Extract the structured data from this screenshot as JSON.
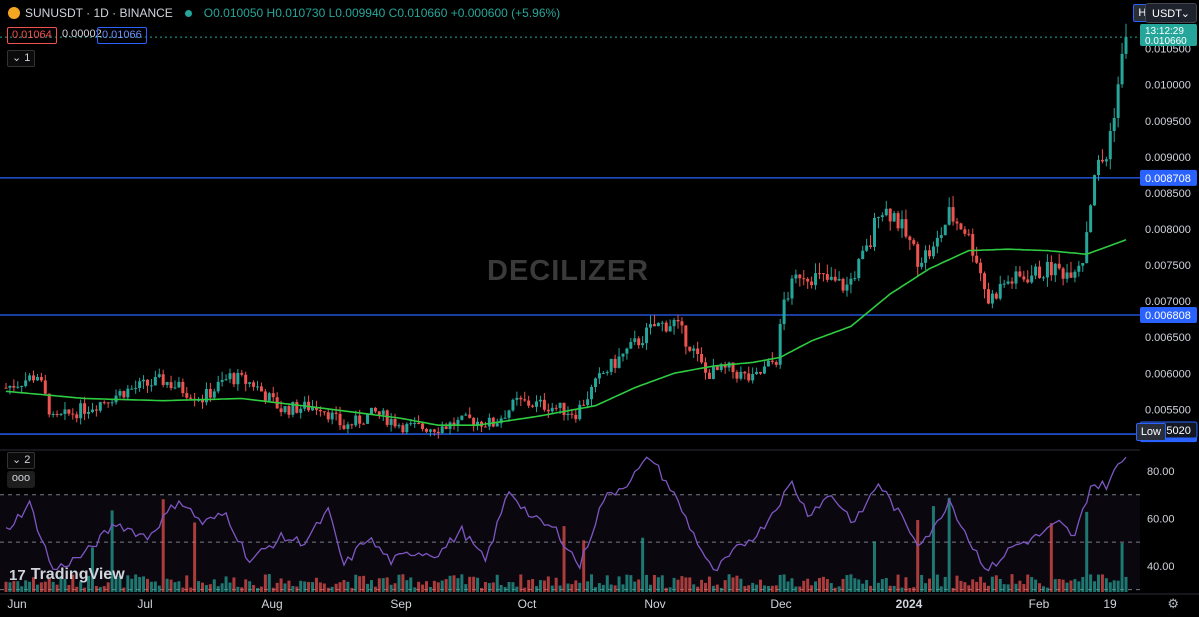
{
  "header": {
    "symbol": "SUNUSDT · 1D · BINANCE",
    "open": "O0.010050",
    "high": "H0.010730",
    "low": "L0.009940",
    "close": "C0.010660",
    "change": "+0.000600 (+5.96%)",
    "bid": "0.01064",
    "spread": "0.00002",
    "ask": "0.01066",
    "pane1_toggle": "1",
    "pane2_toggle": "2",
    "more": "ooo"
  },
  "watermark": "DECILIZER",
  "brand": "TradingView",
  "currency": "USDT",
  "colors": {
    "up": "#26a69a",
    "down": "#ef5350",
    "ma": "#2ecc40",
    "rsi": "#7e57c2",
    "hline": "#2962ff",
    "bg": "#000000"
  },
  "chart_data": [
    {
      "type": "candlestick",
      "title": "SUNUSDT · 1D · BINANCE",
      "x_ticks": [
        "Jun",
        "Jul",
        "Aug",
        "Sep",
        "Oct",
        "Nov",
        "Dec",
        "2024",
        "Feb",
        "19"
      ],
      "y_ticks": [
        0.0055,
        0.006,
        0.0065,
        0.007,
        0.0075,
        0.008,
        0.0085,
        0.009,
        0.0095,
        0.01,
        0.0105
      ],
      "y_tick_labels": [
        "0.005500",
        "0.006000",
        "0.006500",
        "0.007000",
        "0.007500",
        "0.008000",
        "0.008500",
        "0.009000",
        "0.009500",
        "0.010000",
        "0.010500"
      ],
      "ylim": [
        0.00495,
        0.0108
      ],
      "last_price": 0.01066,
      "last_price_label": "0.010660",
      "countdown": "13:12:29",
      "high_label": "High",
      "low_label": "Low",
      "low_value_label": "0.005020",
      "horizontal_lines": [
        {
          "value": 0.008708,
          "label": "0.008708"
        },
        {
          "value": 0.006808,
          "label": "0.006808"
        },
        {
          "value": 0.005157,
          "label": "0.005157"
        }
      ],
      "price_anchors": [
        {
          "d": 0,
          "p": 0.0058
        },
        {
          "d": 8,
          "p": 0.00598
        },
        {
          "d": 12,
          "p": 0.00535
        },
        {
          "d": 22,
          "p": 0.00555
        },
        {
          "d": 30,
          "p": 0.00575
        },
        {
          "d": 40,
          "p": 0.0059
        },
        {
          "d": 50,
          "p": 0.00565
        },
        {
          "d": 57,
          "p": 0.00595
        },
        {
          "d": 63,
          "p": 0.00585
        },
        {
          "d": 70,
          "p": 0.0055
        },
        {
          "d": 80,
          "p": 0.00555
        },
        {
          "d": 86,
          "p": 0.00525
        },
        {
          "d": 94,
          "p": 0.00545
        },
        {
          "d": 102,
          "p": 0.00525
        },
        {
          "d": 110,
          "p": 0.00525
        },
        {
          "d": 118,
          "p": 0.00535
        },
        {
          "d": 124,
          "p": 0.0053
        },
        {
          "d": 130,
          "p": 0.0056
        },
        {
          "d": 138,
          "p": 0.00555
        },
        {
          "d": 145,
          "p": 0.00545
        },
        {
          "d": 152,
          "p": 0.006
        },
        {
          "d": 160,
          "p": 0.0064
        },
        {
          "d": 165,
          "p": 0.00665
        },
        {
          "d": 170,
          "p": 0.0067
        },
        {
          "d": 174,
          "p": 0.0064
        },
        {
          "d": 178,
          "p": 0.006
        },
        {
          "d": 184,
          "p": 0.00605
        },
        {
          "d": 190,
          "p": 0.0059
        },
        {
          "d": 196,
          "p": 0.0062
        },
        {
          "d": 198,
          "p": 0.007
        },
        {
          "d": 202,
          "p": 0.0074
        },
        {
          "d": 208,
          "p": 0.0073
        },
        {
          "d": 214,
          "p": 0.0072
        },
        {
          "d": 220,
          "p": 0.0078
        },
        {
          "d": 222,
          "p": 0.0083
        },
        {
          "d": 226,
          "p": 0.0082
        },
        {
          "d": 232,
          "p": 0.0076
        },
        {
          "d": 236,
          "p": 0.0077
        },
        {
          "d": 240,
          "p": 0.0082
        },
        {
          "d": 244,
          "p": 0.008
        },
        {
          "d": 247,
          "p": 0.0076
        },
        {
          "d": 250,
          "p": 0.007
        },
        {
          "d": 254,
          "p": 0.00725
        },
        {
          "d": 260,
          "p": 0.00735
        },
        {
          "d": 266,
          "p": 0.00745
        },
        {
          "d": 270,
          "p": 0.0074
        },
        {
          "d": 274,
          "p": 0.0076
        },
        {
          "d": 277,
          "p": 0.0088
        },
        {
          "d": 280,
          "p": 0.009
        },
        {
          "d": 283,
          "p": 0.01
        },
        {
          "d": 285,
          "p": 0.01066
        }
      ],
      "ma_anchors": [
        {
          "d": 0,
          "p": 0.00575
        },
        {
          "d": 20,
          "p": 0.00565
        },
        {
          "d": 40,
          "p": 0.00562
        },
        {
          "d": 60,
          "p": 0.00565
        },
        {
          "d": 80,
          "p": 0.00552
        },
        {
          "d": 100,
          "p": 0.00538
        },
        {
          "d": 110,
          "p": 0.00528
        },
        {
          "d": 120,
          "p": 0.00528
        },
        {
          "d": 135,
          "p": 0.0054
        },
        {
          "d": 150,
          "p": 0.00555
        },
        {
          "d": 160,
          "p": 0.0058
        },
        {
          "d": 170,
          "p": 0.006
        },
        {
          "d": 180,
          "p": 0.0061
        },
        {
          "d": 190,
          "p": 0.00615
        },
        {
          "d": 197,
          "p": 0.00622
        },
        {
          "d": 205,
          "p": 0.00645
        },
        {
          "d": 215,
          "p": 0.00665
        },
        {
          "d": 225,
          "p": 0.0071
        },
        {
          "d": 235,
          "p": 0.00745
        },
        {
          "d": 245,
          "p": 0.0077
        },
        {
          "d": 255,
          "p": 0.00772
        },
        {
          "d": 265,
          "p": 0.0077
        },
        {
          "d": 275,
          "p": 0.00765
        },
        {
          "d": 280,
          "p": 0.00775
        },
        {
          "d": 285,
          "p": 0.00785
        }
      ]
    },
    {
      "type": "line",
      "title": "RSI",
      "y_ticks": [
        40,
        60,
        80
      ],
      "y_tick_labels": [
        "40.00",
        "60.00",
        "80.00"
      ],
      "ylim": [
        29,
        88
      ],
      "bands": [
        70,
        50,
        30
      ],
      "rsi_anchors": [
        {
          "d": 0,
          "v": 55
        },
        {
          "d": 6,
          "v": 66
        },
        {
          "d": 12,
          "v": 38
        },
        {
          "d": 20,
          "v": 45
        },
        {
          "d": 28,
          "v": 58
        },
        {
          "d": 36,
          "v": 52
        },
        {
          "d": 44,
          "v": 68
        },
        {
          "d": 50,
          "v": 58
        },
        {
          "d": 56,
          "v": 62
        },
        {
          "d": 62,
          "v": 42
        },
        {
          "d": 70,
          "v": 52
        },
        {
          "d": 76,
          "v": 50
        },
        {
          "d": 82,
          "v": 63
        },
        {
          "d": 86,
          "v": 40
        },
        {
          "d": 92,
          "v": 52
        },
        {
          "d": 98,
          "v": 42
        },
        {
          "d": 104,
          "v": 46
        },
        {
          "d": 110,
          "v": 45
        },
        {
          "d": 116,
          "v": 55
        },
        {
          "d": 122,
          "v": 42
        },
        {
          "d": 128,
          "v": 72
        },
        {
          "d": 134,
          "v": 60
        },
        {
          "d": 140,
          "v": 55
        },
        {
          "d": 146,
          "v": 40
        },
        {
          "d": 152,
          "v": 68
        },
        {
          "d": 158,
          "v": 75
        },
        {
          "d": 164,
          "v": 86
        },
        {
          "d": 170,
          "v": 70
        },
        {
          "d": 176,
          "v": 50
        },
        {
          "d": 180,
          "v": 37
        },
        {
          "d": 186,
          "v": 47
        },
        {
          "d": 192,
          "v": 55
        },
        {
          "d": 196,
          "v": 65
        },
        {
          "d": 200,
          "v": 75
        },
        {
          "d": 204,
          "v": 62
        },
        {
          "d": 210,
          "v": 70
        },
        {
          "d": 216,
          "v": 58
        },
        {
          "d": 222,
          "v": 75
        },
        {
          "d": 226,
          "v": 65
        },
        {
          "d": 232,
          "v": 50
        },
        {
          "d": 236,
          "v": 55
        },
        {
          "d": 240,
          "v": 68
        },
        {
          "d": 246,
          "v": 48
        },
        {
          "d": 250,
          "v": 38
        },
        {
          "d": 256,
          "v": 48
        },
        {
          "d": 262,
          "v": 52
        },
        {
          "d": 268,
          "v": 58
        },
        {
          "d": 272,
          "v": 52
        },
        {
          "d": 276,
          "v": 74
        },
        {
          "d": 280,
          "v": 74
        },
        {
          "d": 283,
          "v": 82
        },
        {
          "d": 285,
          "v": 86
        }
      ]
    }
  ]
}
